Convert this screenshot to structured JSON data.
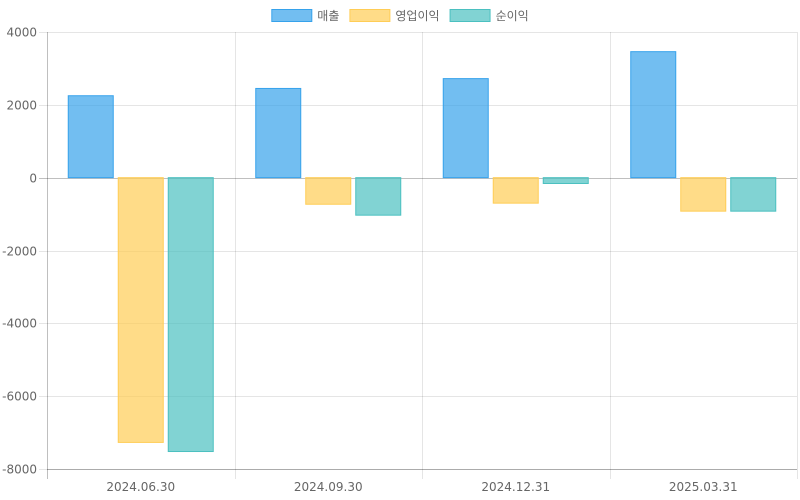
{
  "chart_data": {
    "type": "bar",
    "categories": [
      "2024.06.30",
      "2024.09.30",
      "2024.12.31",
      "2025.03.31"
    ],
    "series": [
      {
        "name": "매출",
        "values": [
          2250,
          2450,
          2720,
          3460
        ],
        "fill": "#36a2eb",
        "border": "#36a2eb"
      },
      {
        "name": "영업이익",
        "values": [
          -7270,
          -730,
          -700,
          -920
        ],
        "fill": "#ffcd56",
        "border": "#ffcd56"
      },
      {
        "name": "순이익",
        "values": [
          -7520,
          -1030,
          -160,
          -920
        ],
        "fill": "#4bc0c0",
        "border": "#4bc0c0"
      }
    ],
    "ylim": [
      -8000,
      4000
    ],
    "yticks": [
      4000,
      2000,
      0,
      -2000,
      -4000,
      -6000,
      -8000
    ],
    "ytick_labels": [
      "4000",
      "2000",
      "0",
      "-2000",
      "-4000",
      "-6000",
      "-8000"
    ],
    "grid": true,
    "legend_position": "top"
  }
}
